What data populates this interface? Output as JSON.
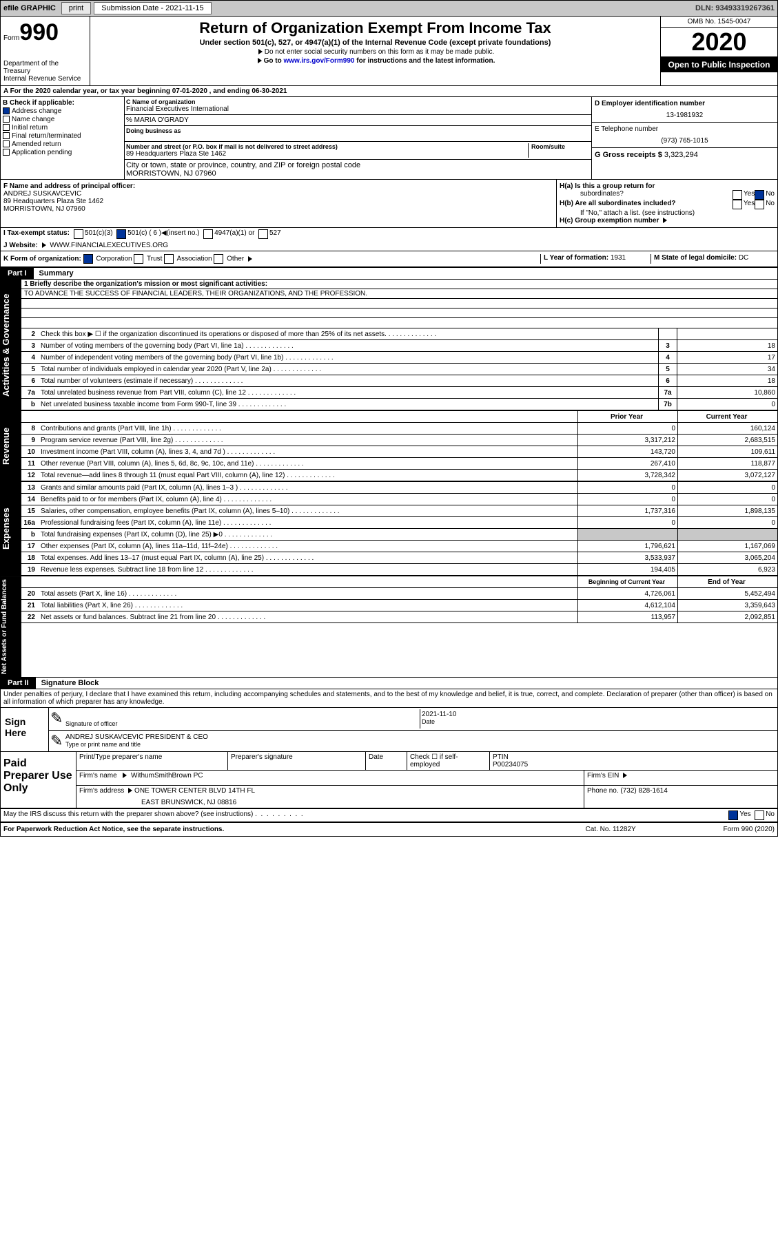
{
  "topbar": {
    "efile_label": "efile GRAPHIC",
    "print_btn": "print",
    "sub_label": "Submission Date - 2021-11-15",
    "dln": "DLN: 93493319267361"
  },
  "header": {
    "form_word": "Form",
    "form_num": "990",
    "dept": "Department of the Treasury",
    "irs": "Internal Revenue Service",
    "title": "Return of Organization Exempt From Income Tax",
    "subtitle": "Under section 501(c), 527, or 4947(a)(1) of the Internal Revenue Code (except private foundations)",
    "note1": "Do not enter social security numbers on this form as it may be made public.",
    "note2_pre": "Go to ",
    "note2_link": "www.irs.gov/Form990",
    "note2_post": " for instructions and the latest information.",
    "omb": "OMB No. 1545-0047",
    "year": "2020",
    "public": "Open to Public Inspection"
  },
  "rowA": "A For the 2020 calendar year, or tax year beginning 07-01-2020   , and ending 06-30-2021",
  "boxB": {
    "label": "B Check if applicable:",
    "items": [
      "Address change",
      "Name change",
      "Initial return",
      "Final return/terminated",
      "Amended return",
      "Application pending"
    ]
  },
  "boxC": {
    "lbl": "C Name of organization",
    "org": "Financial Executives International",
    "care": "% MARIA O'GRADY",
    "dba": "Doing business as",
    "street_lbl": "Number and street (or P.O. box if mail is not delivered to street address)",
    "street": "89 Headquarters Plaza Ste 1462",
    "room_lbl": "Room/suite",
    "city_lbl": "City or town, state or province, country, and ZIP or foreign postal code",
    "city": "MORRISTOWN, NJ  07960"
  },
  "boxD": {
    "lbl": "D Employer identification number",
    "val": "13-1981932"
  },
  "boxE": {
    "lbl": "E Telephone number",
    "val": "(973) 765-1015"
  },
  "boxG": {
    "lbl": "G Gross receipts $",
    "val": "3,323,294"
  },
  "boxF": {
    "lbl": "F  Name and address of principal officer:",
    "name": "ANDREJ SUSKAVCEVIC",
    "addr": "89 Headquarters Plaza Ste 1462",
    "city": "MORRISTOWN, NJ  07960"
  },
  "boxH": {
    "a": "H(a)  Is this a group return for",
    "a2": "subordinates?",
    "b": "H(b)  Are all subordinates included?",
    "note": "If \"No,\" attach a list. (see instructions)",
    "c": "H(c)  Group exemption number"
  },
  "rowI": {
    "lbl": "I  Tax-exempt status:",
    "o1": "501(c)(3)",
    "o2": "501(c) ( 6 )",
    "ins": "(insert no.)",
    "o3": "4947(a)(1) or",
    "o4": "527"
  },
  "rowJ": {
    "lbl": "J  Website:",
    "val": "WWW.FINANCIALEXECUTIVES.ORG"
  },
  "rowK": {
    "lbl": "K Form of organization:",
    "o1": "Corporation",
    "o2": "Trust",
    "o3": "Association",
    "o4": "Other"
  },
  "rowL": {
    "lbl": "L Year of formation:",
    "val": "1931"
  },
  "rowM": {
    "lbl": "M State of legal domicile:",
    "val": "DC"
  },
  "part1": {
    "hdr": "Part I",
    "title": "Summary"
  },
  "mission": {
    "lbl": "1    Briefly describe the organization's mission or most significant activities:",
    "txt": "TO ADVANCE THE SUCCESS OF FINANCIAL LEADERS, THEIR ORGANIZATIONS, AND THE PROFESSION."
  },
  "lines_gov": [
    {
      "n": "2",
      "t": "Check this box ▶ ☐  if the organization discontinued its operations or disposed of more than 25% of its net assets.",
      "num": "",
      "v": ""
    },
    {
      "n": "3",
      "t": "Number of voting members of the governing body (Part VI, line 1a)",
      "num": "3",
      "v": "18"
    },
    {
      "n": "4",
      "t": "Number of independent voting members of the governing body (Part VI, line 1b)",
      "num": "4",
      "v": "17"
    },
    {
      "n": "5",
      "t": "Total number of individuals employed in calendar year 2020 (Part V, line 2a)",
      "num": "5",
      "v": "34"
    },
    {
      "n": "6",
      "t": "Total number of volunteers (estimate if necessary)",
      "num": "6",
      "v": "18"
    },
    {
      "n": "7a",
      "t": "Total unrelated business revenue from Part VIII, column (C), line 12",
      "num": "7a",
      "v": "10,860"
    },
    {
      "n": "b",
      "t": "Net unrelated business taxable income from Form 990-T, line 39",
      "num": "7b",
      "v": "0"
    }
  ],
  "col_hdrs": {
    "py": "Prior Year",
    "cy": "Current Year"
  },
  "lines_rev": [
    {
      "n": "8",
      "t": "Contributions and grants (Part VIII, line 1h)",
      "py": "0",
      "cy": "160,124"
    },
    {
      "n": "9",
      "t": "Program service revenue (Part VIII, line 2g)",
      "py": "3,317,212",
      "cy": "2,683,515"
    },
    {
      "n": "10",
      "t": "Investment income (Part VIII, column (A), lines 3, 4, and 7d )",
      "py": "143,720",
      "cy": "109,611"
    },
    {
      "n": "11",
      "t": "Other revenue (Part VIII, column (A), lines 5, 6d, 8c, 9c, 10c, and 11e)",
      "py": "267,410",
      "cy": "118,877"
    },
    {
      "n": "12",
      "t": "Total revenue—add lines 8 through 11 (must equal Part VIII, column (A), line 12)",
      "py": "3,728,342",
      "cy": "3,072,127"
    }
  ],
  "lines_exp": [
    {
      "n": "13",
      "t": "Grants and similar amounts paid (Part IX, column (A), lines 1–3 )",
      "py": "0",
      "cy": "0"
    },
    {
      "n": "14",
      "t": "Benefits paid to or for members (Part IX, column (A), line 4)",
      "py": "0",
      "cy": "0"
    },
    {
      "n": "15",
      "t": "Salaries, other compensation, employee benefits (Part IX, column (A), lines 5–10)",
      "py": "1,737,316",
      "cy": "1,898,135"
    },
    {
      "n": "16a",
      "t": "Professional fundraising fees (Part IX, column (A), line 11e)",
      "py": "0",
      "cy": "0"
    },
    {
      "n": "b",
      "t": "Total fundraising expenses (Part IX, column (D), line 25) ▶0",
      "py": "",
      "cy": "",
      "gray": true
    },
    {
      "n": "17",
      "t": "Other expenses (Part IX, column (A), lines 11a–11d, 11f–24e)",
      "py": "1,796,621",
      "cy": "1,167,069"
    },
    {
      "n": "18",
      "t": "Total expenses. Add lines 13–17 (must equal Part IX, column (A), line 25)",
      "py": "3,533,937",
      "cy": "3,065,204"
    },
    {
      "n": "19",
      "t": "Revenue less expenses. Subtract line 18 from line 12",
      "py": "194,405",
      "cy": "6,923"
    }
  ],
  "col_hdrs2": {
    "py": "Beginning of Current Year",
    "cy": "End of Year"
  },
  "lines_net": [
    {
      "n": "20",
      "t": "Total assets (Part X, line 16)",
      "py": "4,726,061",
      "cy": "5,452,494"
    },
    {
      "n": "21",
      "t": "Total liabilities (Part X, line 26)",
      "py": "4,612,104",
      "cy": "3,359,643"
    },
    {
      "n": "22",
      "t": "Net assets or fund balances. Subtract line 21 from line 20",
      "py": "113,957",
      "cy": "2,092,851"
    }
  ],
  "vside": {
    "gov": "Activities & Governance",
    "rev": "Revenue",
    "exp": "Expenses",
    "net": "Net Assets or Fund Balances"
  },
  "part2": {
    "hdr": "Part II",
    "title": "Signature Block"
  },
  "perjury": "Under penalties of perjury, I declare that I have examined this return, including accompanying schedules and statements, and to the best of my knowledge and belief, it is true, correct, and complete. Declaration of preparer (other than officer) is based on all information of which preparer has any knowledge.",
  "sign": {
    "here": "Sign Here",
    "sig_lbl": "Signature of officer",
    "date_lbl": "Date",
    "date": "2021-11-10",
    "name": "ANDREJ SUSKAVCEVIC PRESIDENT & CEO",
    "name_lbl": "Type or print name and title"
  },
  "prep": {
    "lbl": "Paid Preparer Use Only",
    "c1": "Print/Type preparer's name",
    "c2": "Preparer's signature",
    "c3": "Date",
    "c4": "Check ☐ if self-employed",
    "c5": "PTIN",
    "ptin": "P00234075",
    "firm_lbl": "Firm's name",
    "firm": "WithumSmithBrown PC",
    "ein_lbl": "Firm's EIN",
    "addr_lbl": "Firm's address",
    "addr": "ONE TOWER CENTER BLVD 14TH FL",
    "addr2": "EAST BRUNSWICK, NJ  08816",
    "phone_lbl": "Phone no.",
    "phone": "(732) 828-1614"
  },
  "discuss": "May the IRS discuss this return with the preparer shown above? (see instructions)",
  "yes": "Yes",
  "no": "No",
  "footer": {
    "l": "For Paperwork Reduction Act Notice, see the separate instructions.",
    "c": "Cat. No. 11282Y",
    "r": "Form 990 (2020)"
  }
}
